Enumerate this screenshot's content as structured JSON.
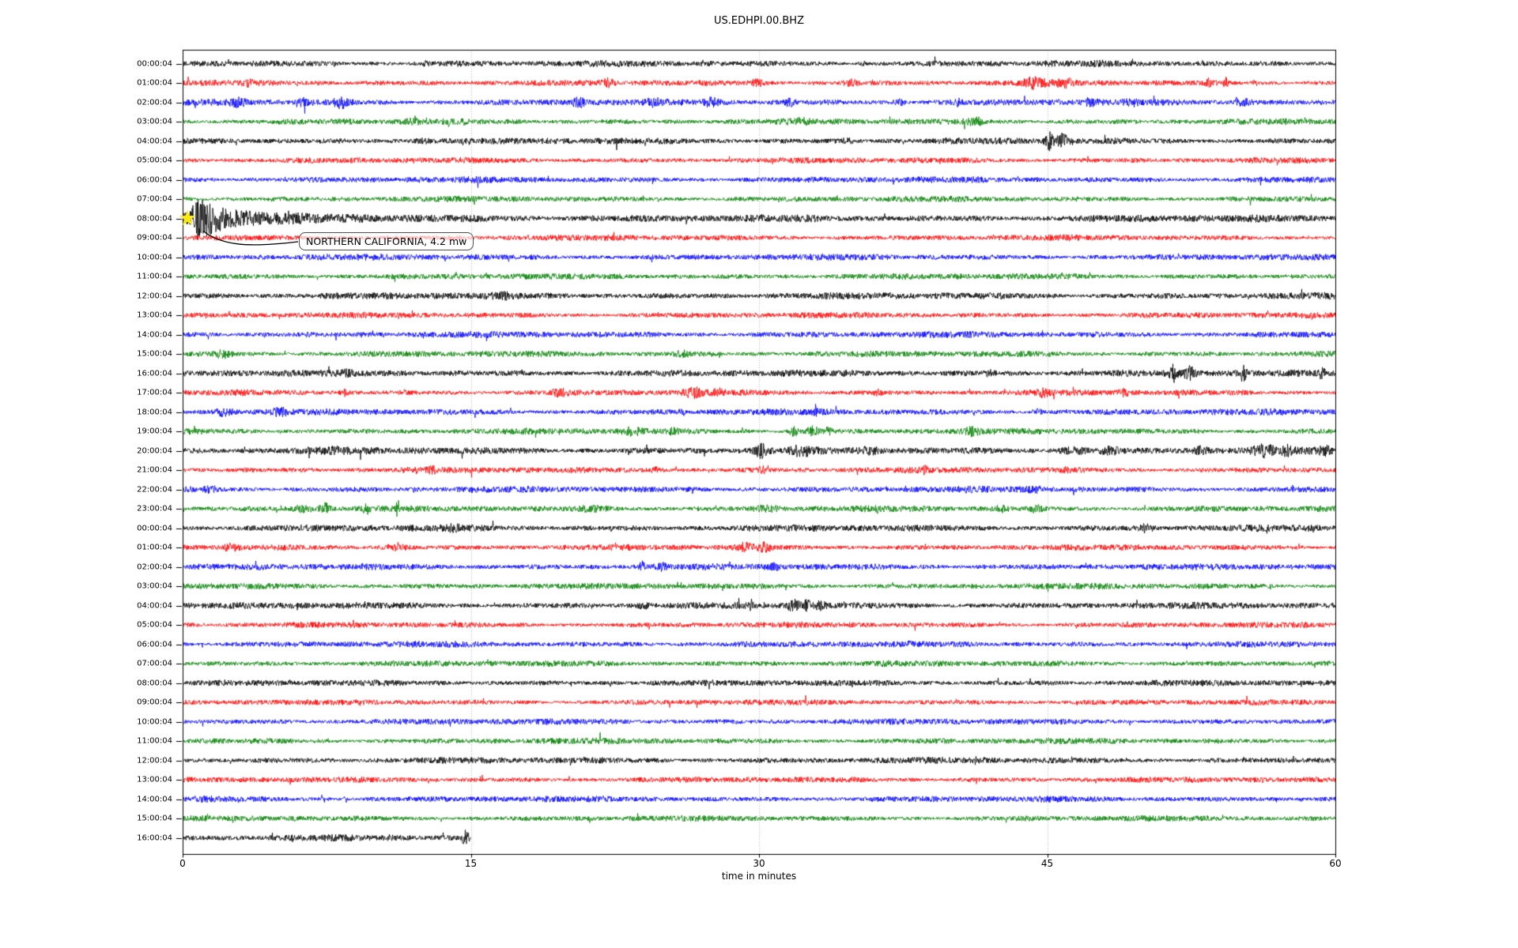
{
  "title": "US.EDHPI.00.BHZ",
  "x_axis": {
    "label": "time in minutes",
    "ticks": [
      0,
      15,
      30,
      45,
      60
    ],
    "gridlines_at": [
      15,
      30,
      45
    ],
    "range": [
      0,
      60
    ]
  },
  "annotation": {
    "text": "NORTHERN CALIFORNIA, 4.2 mw",
    "marker": "yellow-star",
    "event_row_label": "08:00:04",
    "event_time_minutes": 0.25
  },
  "colors": {
    "trace_cycle": [
      "#000000",
      "#ff0000",
      "#0000ff",
      "#008000"
    ],
    "grid": "#b3b3b3",
    "spine": "#000000",
    "star": "#f9e814",
    "annotation_border": "#4d4d4d"
  },
  "chart_data": {
    "type": "line",
    "subtype": "seismogram-dayplot",
    "title": "US.EDHPI.00.BHZ",
    "xlabel": "time in minutes",
    "xlim": [
      0,
      60
    ],
    "minutes_per_row": 60,
    "grid": true,
    "rows": [
      {
        "label": "00:00:04",
        "color": "#000000",
        "amp": 4.4
      },
      {
        "label": "01:00:04",
        "color": "#ff0000",
        "amp": 4.1
      },
      {
        "label": "02:00:04",
        "color": "#0000ff",
        "amp": 4.5
      },
      {
        "label": "03:00:04",
        "color": "#008000",
        "amp": 4.2
      },
      {
        "label": "04:00:04",
        "color": "#000000",
        "amp": 4.5
      },
      {
        "label": "05:00:04",
        "color": "#ff0000",
        "amp": 4.0
      },
      {
        "label": "06:00:04",
        "color": "#0000ff",
        "amp": 4.3
      },
      {
        "label": "07:00:04",
        "color": "#008000",
        "amp": 4.1
      },
      {
        "label": "08:00:04",
        "color": "#000000",
        "amp": 5.0
      },
      {
        "label": "09:00:04",
        "color": "#ff0000",
        "amp": 4.0
      },
      {
        "label": "10:00:04",
        "color": "#0000ff",
        "amp": 4.3
      },
      {
        "label": "11:00:04",
        "color": "#008000",
        "amp": 4.2
      },
      {
        "label": "12:00:04",
        "color": "#000000",
        "amp": 4.8
      },
      {
        "label": "13:00:04",
        "color": "#ff0000",
        "amp": 4.0
      },
      {
        "label": "14:00:04",
        "color": "#0000ff",
        "amp": 4.4
      },
      {
        "label": "15:00:04",
        "color": "#008000",
        "amp": 4.2
      },
      {
        "label": "16:00:04",
        "color": "#000000",
        "amp": 4.8
      },
      {
        "label": "17:00:04",
        "color": "#ff0000",
        "amp": 4.1
      },
      {
        "label": "18:00:04",
        "color": "#0000ff",
        "amp": 4.4
      },
      {
        "label": "19:00:04",
        "color": "#008000",
        "amp": 4.3
      },
      {
        "label": "20:00:04",
        "color": "#000000",
        "amp": 5.0
      },
      {
        "label": "21:00:04",
        "color": "#ff0000",
        "amp": 4.1
      },
      {
        "label": "22:00:04",
        "color": "#0000ff",
        "amp": 4.4
      },
      {
        "label": "23:00:04",
        "color": "#008000",
        "amp": 4.3
      },
      {
        "label": "00:00:04",
        "color": "#000000",
        "amp": 4.7
      },
      {
        "label": "01:00:04",
        "color": "#ff0000",
        "amp": 4.1
      },
      {
        "label": "02:00:04",
        "color": "#0000ff",
        "amp": 4.4
      },
      {
        "label": "03:00:04",
        "color": "#008000",
        "amp": 4.2
      },
      {
        "label": "04:00:04",
        "color": "#000000",
        "amp": 4.5
      },
      {
        "label": "05:00:04",
        "color": "#ff0000",
        "amp": 3.9
      },
      {
        "label": "06:00:04",
        "color": "#0000ff",
        "amp": 4.3
      },
      {
        "label": "07:00:04",
        "color": "#008000",
        "amp": 4.2
      },
      {
        "label": "08:00:04",
        "color": "#000000",
        "amp": 4.2
      },
      {
        "label": "09:00:04",
        "color": "#ff0000",
        "amp": 3.9
      },
      {
        "label": "10:00:04",
        "color": "#0000ff",
        "amp": 4.2
      },
      {
        "label": "11:00:04",
        "color": "#008000",
        "amp": 4.1
      },
      {
        "label": "12:00:04",
        "color": "#000000",
        "amp": 4.4
      },
      {
        "label": "13:00:04",
        "color": "#ff0000",
        "amp": 3.9
      },
      {
        "label": "14:00:04",
        "color": "#0000ff",
        "amp": 4.2
      },
      {
        "label": "15:00:04",
        "color": "#008000",
        "amp": 4.0
      },
      {
        "label": "16:00:04",
        "color": "#000000",
        "amp": 4.4,
        "end_min": 15.0
      }
    ],
    "events": [
      {
        "row": 0,
        "t": 12.6,
        "a": 3,
        "w": 0.08
      },
      {
        "row": 0,
        "t": 14.3,
        "a": 1.8,
        "w": 0.4
      },
      {
        "row": 0,
        "t": 27.2,
        "a": 2,
        "w": 0.3
      },
      {
        "row": 0,
        "t": 35.4,
        "a": 2.5,
        "w": 0.12
      },
      {
        "row": 1,
        "t": 3.5,
        "a": 2.5,
        "w": 0.3
      },
      {
        "row": 1,
        "t": 22.1,
        "a": 3.5,
        "w": 0.3
      },
      {
        "row": 1,
        "t": 29.9,
        "a": 3,
        "w": 0.35
      },
      {
        "row": 1,
        "t": 34.8,
        "a": 3.5,
        "w": 0.4
      },
      {
        "row": 1,
        "t": 44.3,
        "a": 5,
        "w": 0.55
      },
      {
        "row": 1,
        "t": 45.9,
        "a": 4.5,
        "w": 0.45
      },
      {
        "row": 1,
        "t": 53.4,
        "a": 4,
        "w": 0.15
      },
      {
        "row": 1,
        "t": 54.3,
        "a": 5,
        "w": 0.12
      },
      {
        "row": 1,
        "t": 55.8,
        "a": 3.5,
        "w": 0.12
      },
      {
        "row": 2,
        "t": 2.9,
        "a": 4.5,
        "w": 0.4
      },
      {
        "row": 2,
        "t": 6.3,
        "a": 4,
        "w": 0.3
      },
      {
        "row": 2,
        "t": 8.3,
        "a": 5.5,
        "w": 0.45
      },
      {
        "row": 2,
        "t": 20.6,
        "a": 5,
        "w": 0.35
      },
      {
        "row": 2,
        "t": 24.5,
        "a": 3,
        "w": 0.3
      },
      {
        "row": 2,
        "t": 27.5,
        "a": 4,
        "w": 0.4
      },
      {
        "row": 2,
        "t": 31.6,
        "a": 3.5,
        "w": 0.3
      },
      {
        "row": 2,
        "t": 37.3,
        "a": 3,
        "w": 0.3
      },
      {
        "row": 2,
        "t": 40.3,
        "a": 3,
        "w": 0.3
      },
      {
        "row": 2,
        "t": 47.2,
        "a": 3.5,
        "w": 0.3
      },
      {
        "row": 2,
        "t": 49.4,
        "a": 3,
        "w": 0.3
      },
      {
        "row": 2,
        "t": 55.2,
        "a": 4,
        "w": 0.5
      },
      {
        "row": 3,
        "t": 12.0,
        "a": 2,
        "w": 0.4
      },
      {
        "row": 3,
        "t": 32.1,
        "a": 2.5,
        "w": 0.5
      },
      {
        "row": 3,
        "t": 41.3,
        "a": 4,
        "w": 0.45
      },
      {
        "row": 4,
        "t": 12.5,
        "a": 2,
        "w": 0.5
      },
      {
        "row": 4,
        "t": 34.6,
        "a": 2,
        "w": 0.3
      },
      {
        "row": 4,
        "t": 45.1,
        "a": 11,
        "w": 0.22
      },
      {
        "row": 4,
        "t": 45.8,
        "a": 7,
        "w": 0.3
      },
      {
        "row": 8,
        "t": 0.62,
        "a": 17,
        "rise": 0.12,
        "decay": 1.6
      },
      {
        "row": 8,
        "t": 1.1,
        "a": 6,
        "w": 0.9
      },
      {
        "row": 8,
        "t": 2.6,
        "a": 2.5,
        "w": 3.0
      },
      {
        "row": 8,
        "t": 9,
        "a": 1.2,
        "w": 10
      },
      {
        "row": 12,
        "t": 16.8,
        "a": 1.5,
        "w": 0.5
      },
      {
        "row": 15,
        "t": 2.1,
        "a": 3.5,
        "w": 0.5
      },
      {
        "row": 15,
        "t": 26.0,
        "a": 3,
        "w": 0.4
      },
      {
        "row": 16,
        "t": 8.3,
        "a": 2,
        "w": 0.4
      },
      {
        "row": 16,
        "t": 42.0,
        "a": 2.5,
        "w": 0.3
      },
      {
        "row": 16,
        "t": 51.6,
        "a": 8.5,
        "w": 0.22
      },
      {
        "row": 16,
        "t": 52.4,
        "a": 6,
        "w": 0.3
      },
      {
        "row": 16,
        "t": 55.2,
        "a": 8,
        "w": 0.18
      },
      {
        "row": 16,
        "t": 59.3,
        "a": 5,
        "w": 0.18
      },
      {
        "row": 17,
        "t": 8.4,
        "a": 3,
        "w": 0.2
      },
      {
        "row": 17,
        "t": 19.6,
        "a": 4,
        "w": 0.35
      },
      {
        "row": 17,
        "t": 26.6,
        "a": 4.5,
        "w": 0.45
      },
      {
        "row": 17,
        "t": 27.8,
        "a": 4,
        "w": 0.3
      },
      {
        "row": 17,
        "t": 36.2,
        "a": 3,
        "w": 0.25
      },
      {
        "row": 17,
        "t": 44.8,
        "a": 4,
        "w": 0.3
      },
      {
        "row": 17,
        "t": 49.0,
        "a": 2.5,
        "w": 0.3
      },
      {
        "row": 18,
        "t": 2.2,
        "a": 4,
        "w": 0.45
      },
      {
        "row": 18,
        "t": 5.1,
        "a": 3.5,
        "w": 0.35
      },
      {
        "row": 18,
        "t": 26.0,
        "a": 4,
        "w": 0.12
      },
      {
        "row": 18,
        "t": 32.9,
        "a": 3,
        "w": 0.3
      },
      {
        "row": 18,
        "t": 44.5,
        "a": 2.5,
        "w": 0.3
      },
      {
        "row": 19,
        "t": 23.4,
        "a": 3,
        "w": 0.5
      },
      {
        "row": 19,
        "t": 25.5,
        "a": 3,
        "w": 0.3
      },
      {
        "row": 19,
        "t": 31.8,
        "a": 5,
        "w": 0.2
      },
      {
        "row": 19,
        "t": 32.8,
        "a": 5,
        "w": 0.3
      },
      {
        "row": 19,
        "t": 33.6,
        "a": 4,
        "w": 0.2
      },
      {
        "row": 19,
        "t": 41.1,
        "a": 3.5,
        "w": 0.3
      },
      {
        "row": 20,
        "t": 7.9,
        "a": 2.5,
        "w": 0.6
      },
      {
        "row": 20,
        "t": 30.1,
        "a": 6.5,
        "w": 0.3
      },
      {
        "row": 20,
        "t": 32.2,
        "a": 4,
        "w": 0.5
      },
      {
        "row": 20,
        "t": 35.8,
        "a": 3,
        "w": 0.4
      },
      {
        "row": 20,
        "t": 46.3,
        "a": 3.5,
        "w": 0.8
      },
      {
        "row": 20,
        "t": 48.3,
        "a": 3.5,
        "w": 0.5
      },
      {
        "row": 20,
        "t": 53.0,
        "a": 4,
        "w": 0.3
      },
      {
        "row": 20,
        "t": 56.3,
        "a": 5,
        "w": 0.5
      },
      {
        "row": 20,
        "t": 57.5,
        "a": 4,
        "w": 0.3
      },
      {
        "row": 20,
        "t": 59.5,
        "a": 4,
        "w": 0.3
      },
      {
        "row": 21,
        "t": 13.0,
        "a": 2.5,
        "w": 0.3
      },
      {
        "row": 21,
        "t": 24.7,
        "a": 3,
        "w": 0.3
      },
      {
        "row": 21,
        "t": 30.2,
        "a": 3.5,
        "w": 0.25
      },
      {
        "row": 21,
        "t": 38.6,
        "a": 4.5,
        "w": 0.18
      },
      {
        "row": 21,
        "t": 45.9,
        "a": 2.5,
        "w": 0.25
      },
      {
        "row": 22,
        "t": 1.5,
        "a": 2.5,
        "w": 0.4
      },
      {
        "row": 22,
        "t": 44.4,
        "a": 2,
        "w": 0.4
      },
      {
        "row": 23,
        "t": 6.2,
        "a": 3,
        "w": 0.5
      },
      {
        "row": 23,
        "t": 7.4,
        "a": 6,
        "w": 0.25
      },
      {
        "row": 23,
        "t": 9.6,
        "a": 4,
        "w": 0.25
      },
      {
        "row": 23,
        "t": 11.2,
        "a": 8,
        "w": 0.1
      },
      {
        "row": 23,
        "t": 21.5,
        "a": 2.5,
        "w": 1.0
      },
      {
        "row": 23,
        "t": 30.5,
        "a": 2.5,
        "w": 0.6
      },
      {
        "row": 23,
        "t": 42.6,
        "a": 3,
        "w": 0.4
      },
      {
        "row": 23,
        "t": 44.4,
        "a": 3,
        "w": 0.3
      },
      {
        "row": 24,
        "t": 14.0,
        "a": 2,
        "w": 0.6
      },
      {
        "row": 24,
        "t": 50.2,
        "a": 4.5,
        "w": 0.3
      },
      {
        "row": 25,
        "t": 2.5,
        "a": 2.5,
        "w": 0.4
      },
      {
        "row": 25,
        "t": 11.0,
        "a": 2.5,
        "w": 0.8
      },
      {
        "row": 25,
        "t": 29.3,
        "a": 4,
        "w": 0.4
      },
      {
        "row": 25,
        "t": 30.3,
        "a": 5,
        "w": 0.3
      },
      {
        "row": 26,
        "t": 23.9,
        "a": 6,
        "w": 0.15
      },
      {
        "row": 26,
        "t": 24.9,
        "a": 4,
        "w": 0.3
      },
      {
        "row": 26,
        "t": 30.9,
        "a": 2.5,
        "w": 0.4
      },
      {
        "row": 28,
        "t": 24.0,
        "a": 2.5,
        "w": 0.3
      },
      {
        "row": 28,
        "t": 29.6,
        "a": 6,
        "w": 0.08
      },
      {
        "row": 28,
        "t": 30.3,
        "a": 5,
        "w": 0.08
      },
      {
        "row": 28,
        "t": 31.8,
        "a": 5,
        "w": 0.35
      },
      {
        "row": 28,
        "t": 32.5,
        "a": 11,
        "w": 0.12
      },
      {
        "row": 28,
        "t": 33.2,
        "a": 4,
        "w": 0.3
      },
      {
        "row": 38,
        "t": 1.5,
        "a": 1.5,
        "w": 1.5
      },
      {
        "row": 40,
        "t": 10.8,
        "a": 2.5,
        "w": 0.08
      },
      {
        "row": 40,
        "t": 14.7,
        "a": 7,
        "w": 0.2
      }
    ]
  }
}
